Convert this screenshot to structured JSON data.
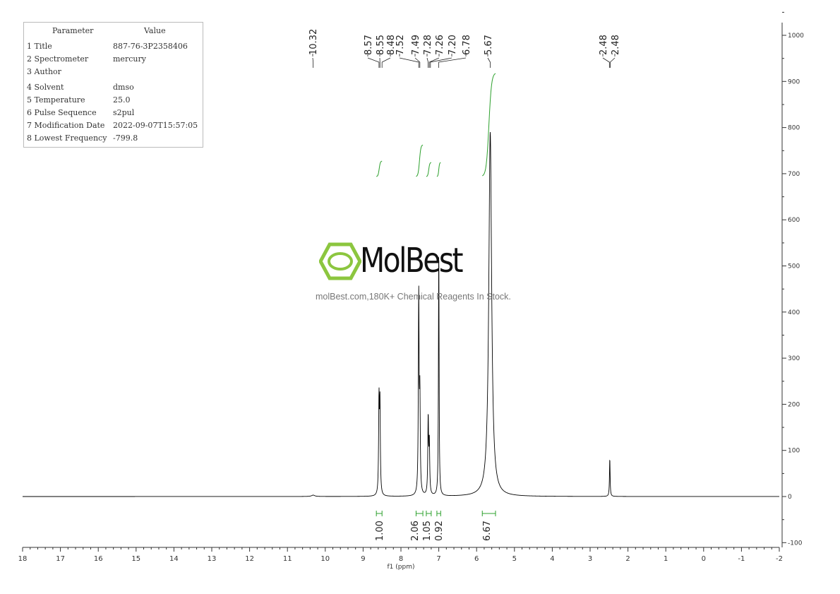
{
  "parameters": {
    "header": {
      "param": "Parameter",
      "value": "Value"
    },
    "rows": [
      {
        "param": "1 Title",
        "value": "887-76-3P2358406"
      },
      {
        "param": "2 Spectrometer",
        "value": "mercury"
      },
      {
        "param": "3 Author",
        "value": ""
      },
      {
        "param": "4 Solvent",
        "value": "dmso"
      },
      {
        "param": "5 Temperature",
        "value": "25.0"
      },
      {
        "param": "6 Pulse Sequence",
        "value": "s2pul"
      },
      {
        "param": "7 Modification Date",
        "value": "2022-09-07T15:57:05"
      },
      {
        "param": "8 Lowest Frequency",
        "value": "-799.8"
      }
    ]
  },
  "watermark": {
    "brand": "MolBest",
    "tagline": "molBest.com,180K+ Chemical Reagents In Stock.",
    "color": "#8cc63f"
  },
  "chart_data": {
    "type": "line",
    "xlabel": "f1 (ppm)",
    "xlim": [
      18,
      -2
    ],
    "ylim": [
      -100,
      1000
    ],
    "x_ticks": [
      18,
      17,
      16,
      15,
      14,
      13,
      12,
      11,
      10,
      9,
      8,
      7,
      6,
      5,
      4,
      3,
      2,
      1,
      0,
      -1,
      -2
    ],
    "y_ticks": [
      -100,
      0,
      100,
      200,
      300,
      400,
      500,
      600,
      700,
      800,
      900,
      1000
    ],
    "peaks": [
      {
        "ppm": 8.58,
        "height": 200,
        "width": 0.012
      },
      {
        "ppm": 8.555,
        "height": 190,
        "width": 0.012
      },
      {
        "ppm": 7.53,
        "height": 430,
        "width": 0.012
      },
      {
        "ppm": 7.5,
        "height": 200,
        "width": 0.012
      },
      {
        "ppm": 7.28,
        "height": 165,
        "width": 0.012
      },
      {
        "ppm": 7.25,
        "height": 110,
        "width": 0.012
      },
      {
        "ppm": 7.0,
        "height": 535,
        "width": 0.01
      },
      {
        "ppm": 5.64,
        "height": 790,
        "width": 0.045
      },
      {
        "ppm": 2.48,
        "height": 82,
        "width": 0.01
      },
      {
        "ppm": 10.32,
        "height": 3,
        "width": 0.05
      }
    ],
    "peak_labels": [
      "10.32",
      "8.57",
      "8.55",
      "8.48",
      "7.52",
      "7.49",
      "7.28",
      "7.26",
      "7.20",
      "6.78",
      "5.67",
      "2.48",
      "2.48"
    ],
    "integrals": [
      {
        "from": 8.65,
        "to": 8.5,
        "value": "1.00"
      },
      {
        "from": 7.6,
        "to": 7.42,
        "value": "2.06"
      },
      {
        "from": 7.33,
        "to": 7.2,
        "value": "1.05"
      },
      {
        "from": 7.05,
        "to": 6.95,
        "value": "0.92"
      },
      {
        "from": 5.85,
        "to": 5.5,
        "value": "6.67"
      }
    ],
    "line_color": "#000000",
    "integral_color": "#2ca02c"
  }
}
